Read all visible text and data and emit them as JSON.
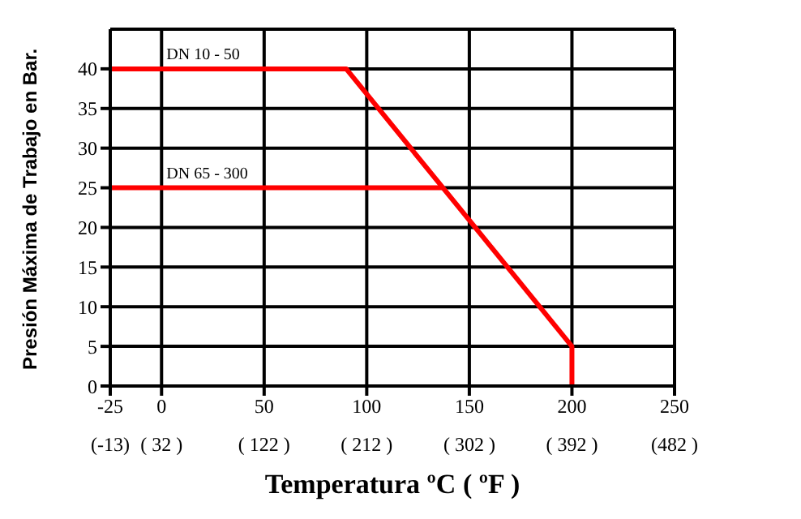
{
  "chart_data": {
    "type": "line",
    "xlabel": "Temperatura ºC  ( ºF )",
    "ylabel": "Presión Máxima de Trabajo en Bar.",
    "series": [
      {
        "name": "DN 10 - 50",
        "color": "#ff0000",
        "x": [
          -25,
          90,
          200,
          200
        ],
        "values": [
          40,
          40,
          5,
          0
        ]
      },
      {
        "name": "DN 65 - 300",
        "color": "#ff0000",
        "x": [
          -25,
          137
        ],
        "values": [
          25,
          25
        ]
      }
    ],
    "xlim": [
      -25,
      250
    ],
    "xticks": [
      -25,
      0,
      50,
      100,
      150,
      200,
      250
    ],
    "x2lim": [
      -13,
      482
    ],
    "x2ticks": [
      {
        "value": -13,
        "label": "(-13)"
      },
      {
        "value": 32,
        "label": "( 32 )"
      },
      {
        "value": 122,
        "label": "( 122 )"
      },
      {
        "value": 212,
        "label": "( 212 )"
      },
      {
        "value": 302,
        "label": "( 302 )"
      },
      {
        "value": 392,
        "label": "( 392 )"
      },
      {
        "value": 482,
        "label": "(482 )"
      }
    ],
    "ylim": [
      0,
      45
    ],
    "yticks": [
      0,
      5,
      10,
      15,
      20,
      25,
      30,
      35,
      40
    ],
    "grid": true,
    "legend": false,
    "marker": "none",
    "line_style": "solid"
  }
}
